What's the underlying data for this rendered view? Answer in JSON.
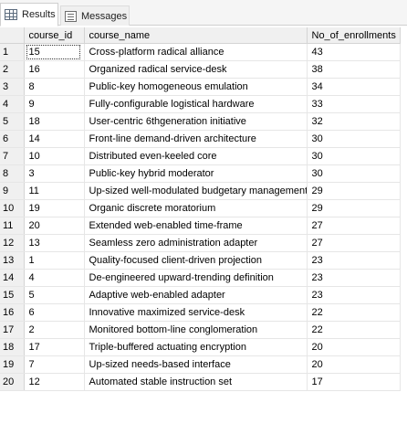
{
  "tabs": [
    {
      "label": "Results",
      "icon": "grid-icon",
      "active": true
    },
    {
      "label": "Messages",
      "icon": "messages-icon",
      "active": false
    }
  ],
  "columns": [
    "course_id",
    "course_name",
    "No_of_enrollments"
  ],
  "rows": [
    {
      "rn": "1",
      "course_id": "15",
      "course_name": "Cross-platform radical alliance",
      "enrollments": "43"
    },
    {
      "rn": "2",
      "course_id": "16",
      "course_name": "Organized radical service-desk",
      "enrollments": "38"
    },
    {
      "rn": "3",
      "course_id": "8",
      "course_name": "Public-key homogeneous emulation",
      "enrollments": "34"
    },
    {
      "rn": "4",
      "course_id": "9",
      "course_name": "Fully-configurable logistical hardware",
      "enrollments": "33"
    },
    {
      "rn": "5",
      "course_id": "18",
      "course_name": "User-centric 6thgeneration initiative",
      "enrollments": "32"
    },
    {
      "rn": "6",
      "course_id": "14",
      "course_name": "Front-line demand-driven architecture",
      "enrollments": "30"
    },
    {
      "rn": "7",
      "course_id": "10",
      "course_name": "Distributed even-keeled core",
      "enrollments": "30"
    },
    {
      "rn": "8",
      "course_id": "3",
      "course_name": "Public-key hybrid moderator",
      "enrollments": "30"
    },
    {
      "rn": "9",
      "course_id": "11",
      "course_name": "Up-sized well-modulated budgetary management",
      "enrollments": "29"
    },
    {
      "rn": "10",
      "course_id": "19",
      "course_name": "Organic discrete moratorium",
      "enrollments": "29"
    },
    {
      "rn": "11",
      "course_id": "20",
      "course_name": "Extended web-enabled time-frame",
      "enrollments": "27"
    },
    {
      "rn": "12",
      "course_id": "13",
      "course_name": "Seamless zero administration adapter",
      "enrollments": "27"
    },
    {
      "rn": "13",
      "course_id": "1",
      "course_name": "Quality-focused client-driven projection",
      "enrollments": "23"
    },
    {
      "rn": "14",
      "course_id": "4",
      "course_name": "De-engineered upward-trending definition",
      "enrollments": "23"
    },
    {
      "rn": "15",
      "course_id": "5",
      "course_name": "Adaptive web-enabled adapter",
      "enrollments": "23"
    },
    {
      "rn": "16",
      "course_id": "6",
      "course_name": "Innovative maximized service-desk",
      "enrollments": "22"
    },
    {
      "rn": "17",
      "course_id": "2",
      "course_name": "Monitored bottom-line conglomeration",
      "enrollments": "22"
    },
    {
      "rn": "18",
      "course_id": "17",
      "course_name": "Triple-buffered actuating encryption",
      "enrollments": "20"
    },
    {
      "rn": "19",
      "course_id": "7",
      "course_name": "Up-sized needs-based interface",
      "enrollments": "20"
    },
    {
      "rn": "20",
      "course_id": "12",
      "course_name": "Automated stable instruction set",
      "enrollments": "17"
    }
  ],
  "selected_row": 0,
  "colors": {
    "header_bg": "#f0f0f0",
    "gridline": "#e6e6e6",
    "tab_bar_bg": "#f5f5f5"
  }
}
